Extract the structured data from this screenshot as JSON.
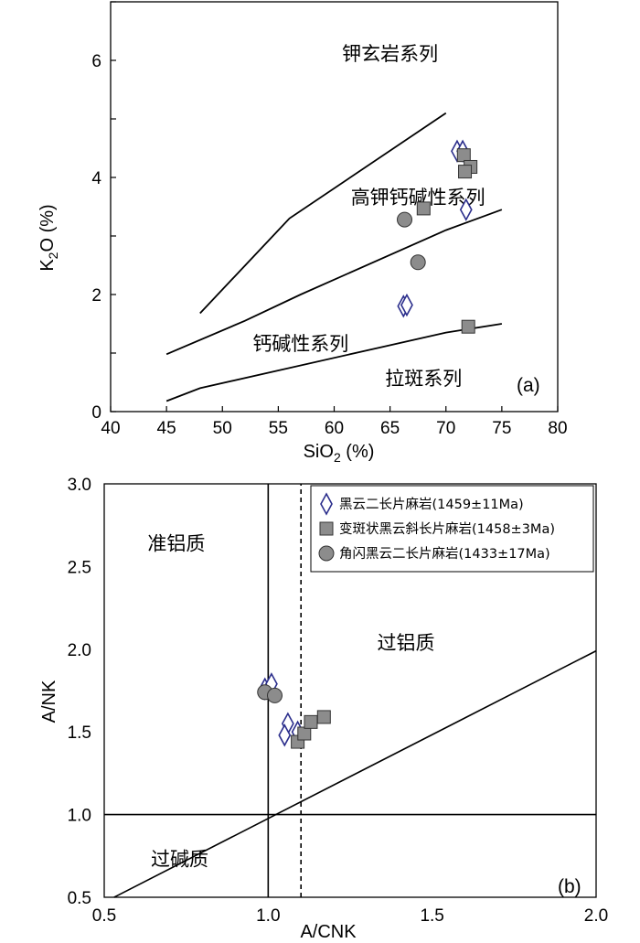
{
  "chart_data": [
    {
      "type": "scatter",
      "panel_label": "(a)",
      "xlabel": {
        "main": "SiO",
        "sub": "2",
        "unit": " (%)"
      },
      "ylabel": {
        "main": "K",
        "sub": "2",
        "rest": "O (%)"
      },
      "xlim": [
        40,
        80
      ],
      "ylim": [
        0,
        7
      ],
      "x_ticks": [
        40,
        45,
        50,
        55,
        60,
        65,
        70,
        75,
        80
      ],
      "y_ticks": [
        0,
        2,
        4,
        6
      ],
      "regions": [
        {
          "label": "钾玄岩系列",
          "x": 65,
          "y": 6.0
        },
        {
          "label": "高钾钙碱性系列",
          "x": 67.5,
          "y": 3.55
        },
        {
          "label": "钙碱性系列",
          "x": 57,
          "y": 1.05
        },
        {
          "label": "拉斑系列",
          "x": 68,
          "y": 0.45
        }
      ],
      "boundary_lines": [
        [
          [
            48,
            1.68
          ],
          [
            56,
            3.3
          ],
          [
            70,
            5.1
          ]
        ],
        [
          [
            45,
            0.98
          ],
          [
            52,
            1.55
          ],
          [
            57,
            2.0
          ],
          [
            70,
            3.1
          ],
          [
            75,
            3.45
          ]
        ],
        [
          [
            45,
            0.18
          ],
          [
            48,
            0.4
          ],
          [
            70,
            1.35
          ],
          [
            75,
            1.5
          ]
        ]
      ],
      "series": [
        {
          "name": "黑云二长片麻岩",
          "marker": "diamond",
          "color": "#2b2e8c",
          "points": [
            [
              71.0,
              4.45
            ],
            [
              71.5,
              4.45
            ],
            [
              71.8,
              3.45
            ],
            [
              66.2,
              1.8
            ],
            [
              66.5,
              1.82
            ]
          ]
        },
        {
          "name": "变斑状黑云斜长片麻岩",
          "marker": "square",
          "color": "#8c8c8c",
          "points": [
            [
              71.6,
              4.38
            ],
            [
              72.2,
              4.18
            ],
            [
              71.7,
              4.1
            ],
            [
              68.0,
              3.47
            ],
            [
              72.0,
              1.45
            ]
          ]
        },
        {
          "name": "角闪黑云二长片麻岩",
          "marker": "circle",
          "color": "#8c8c8c",
          "points": [
            [
              66.3,
              3.28
            ],
            [
              67.5,
              2.55
            ]
          ]
        }
      ]
    },
    {
      "type": "scatter",
      "panel_label": "(b)",
      "xlabel": "A/CNK",
      "ylabel": "A/NK",
      "xlim": [
        0.5,
        2.0
      ],
      "ylim": [
        0.5,
        3.0
      ],
      "x_ticks": [
        0.5,
        1.0,
        1.5,
        2.0
      ],
      "x_tick_labels": [
        "0.5",
        "1.0",
        "1.5",
        "2.0"
      ],
      "y_ticks": [
        0.5,
        1.0,
        1.5,
        2.0,
        2.5,
        3.0
      ],
      "y_tick_labels": [
        "0.5",
        "1.0",
        "1.5",
        "2.0",
        "2.5",
        "3.0"
      ],
      "regions": [
        {
          "label": "准铝质",
          "x": 0.72,
          "y": 2.6
        },
        {
          "label": "过铝质",
          "x": 1.42,
          "y": 2.0
        },
        {
          "label": "过碱质",
          "x": 0.73,
          "y": 0.69
        }
      ],
      "reference_lines": [
        {
          "style": "solid",
          "points": [
            [
              1.0,
              0.5
            ],
            [
              1.0,
              3.0
            ]
          ]
        },
        {
          "style": "solid",
          "points": [
            [
              0.5,
              1.0
            ],
            [
              2.0,
              1.0
            ]
          ]
        },
        {
          "style": "dashed",
          "points": [
            [
              1.1,
              0.5
            ],
            [
              1.1,
              3.0
            ]
          ]
        },
        {
          "style": "solid",
          "points": [
            [
              0.53,
              0.5
            ],
            [
              2.0,
              1.99
            ]
          ]
        }
      ],
      "legend": [
        {
          "marker": "diamond",
          "label": "黑云二长片麻岩(1459±11Ma)"
        },
        {
          "marker": "square",
          "label": "变斑状黑云斜长片麻岩(1458±3Ma)"
        },
        {
          "marker": "circle",
          "label": "角闪黑云二长片麻岩(1433±17Ma)"
        }
      ],
      "series": [
        {
          "name": "黑云二长片麻岩",
          "marker": "diamond",
          "color": "#2b2e8c",
          "points": [
            [
              0.99,
              1.76
            ],
            [
              1.01,
              1.79
            ],
            [
              1.06,
              1.55
            ],
            [
              1.05,
              1.48
            ],
            [
              1.09,
              1.5
            ]
          ]
        },
        {
          "name": "变斑状黑云斜长片麻岩",
          "marker": "square",
          "color": "#8c8c8c",
          "points": [
            [
              1.09,
              1.44
            ],
            [
              1.11,
              1.49
            ],
            [
              1.13,
              1.56
            ],
            [
              1.17,
              1.59
            ]
          ]
        },
        {
          "name": "角闪黑云二长片麻岩",
          "marker": "circle",
          "color": "#8c8c8c",
          "points": [
            [
              0.99,
              1.74
            ],
            [
              1.02,
              1.72
            ]
          ]
        }
      ]
    }
  ]
}
